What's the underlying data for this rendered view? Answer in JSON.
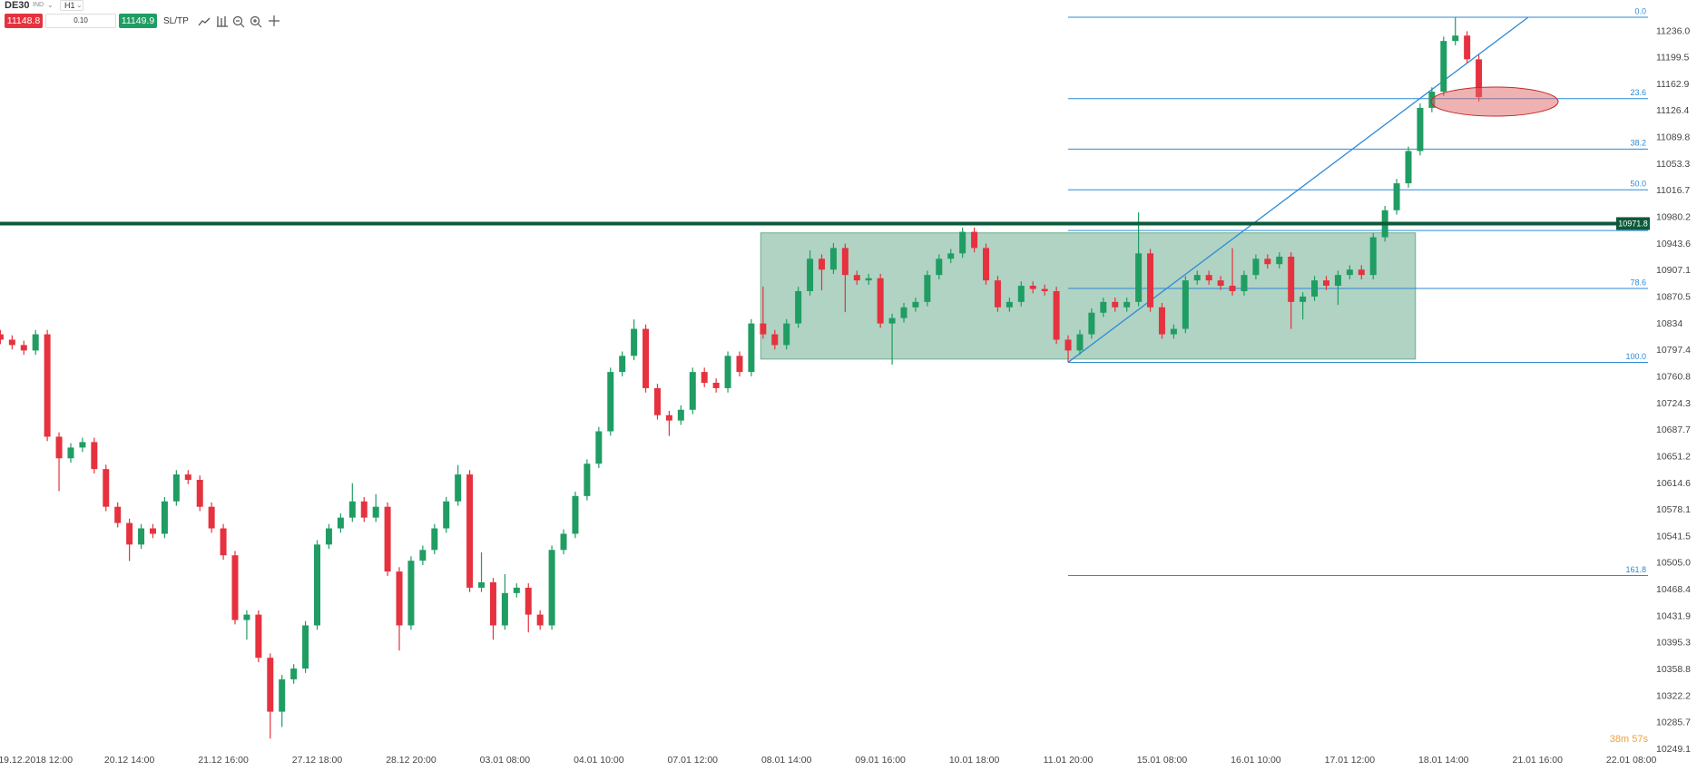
{
  "toolbar": {
    "symbol": "DE30",
    "tag": "IND",
    "timeframe": "H1",
    "sell_price": "11148.8",
    "volume": "0.10",
    "buy_price": "11149.9",
    "sltp": "SL/TP"
  },
  "chart_data": {
    "type": "candlestick",
    "categories": [
      null,
      null,
      null,
      "19.12.2018 12:00",
      null,
      null,
      null,
      null,
      null,
      null,
      null,
      "20.12 14:00",
      null,
      null,
      null,
      null,
      null,
      null,
      null,
      "21.12 16:00",
      null,
      null,
      null,
      null,
      null,
      null,
      null,
      "27.12 18:00",
      null,
      null,
      null,
      null,
      null,
      null,
      null,
      "28.12 20:00",
      null,
      null,
      null,
      null,
      null,
      null,
      null,
      "03.01 08:00",
      null,
      null,
      null,
      null,
      null,
      null,
      null,
      "04.01 10:00",
      null,
      null,
      null,
      null,
      null,
      null,
      null,
      "07.01 12:00",
      null,
      null,
      null,
      null,
      null,
      null,
      null,
      "08.01 14:00",
      null,
      null,
      null,
      null,
      null,
      null,
      null,
      "09.01 16:00",
      null,
      null,
      null,
      null,
      null,
      null,
      null,
      "10.01 18:00",
      null,
      null,
      null,
      null,
      null,
      null,
      null,
      "11.01 20:00",
      null,
      null,
      null,
      null,
      null,
      null,
      null,
      "15.01 08:00",
      null,
      null,
      null,
      null,
      null,
      null,
      null,
      "16.01 10:00",
      null,
      null,
      null,
      null,
      null,
      null,
      null,
      "17.01 12:00",
      null,
      null,
      null,
      null,
      null,
      null,
      null,
      "18.01 14:00",
      null,
      null,
      null,
      null,
      null,
      null,
      null,
      "21.01 16:00",
      null,
      null,
      null,
      null,
      null,
      null,
      null,
      "22.01 08:00"
    ],
    "open": [
      10819.6,
      10812.2,
      10804.8,
      10797.4,
      10819.6,
      10678.9,
      10649.2,
      10664.0,
      10671.5,
      10634.4,
      10582.6,
      10560.3,
      10530.7,
      10552.9,
      10545.5,
      10590.0,
      10627.0,
      10619.6,
      10582.6,
      10552.9,
      10515.9,
      10427.0,
      10434.4,
      10375.1,
      10301.0,
      10345.5,
      10360.3,
      10419.6,
      10530.7,
      10552.9,
      10567.7,
      10590.0,
      10567.7,
      10582.6,
      10493.6,
      10419.6,
      10508.5,
      10523.3,
      10552.9,
      10590.0,
      10627.0,
      10471.4,
      10478.8,
      10419.6,
      10464.0,
      10471.4,
      10434.4,
      10419.6,
      10523.3,
      10545.5,
      10597.4,
      10641.8,
      10686.3,
      10767.8,
      10790.0,
      10827.1,
      10745.6,
      10708.5,
      10701.1,
      10715.9,
      10767.8,
      10753.0,
      10745.6,
      10790.0,
      10767.8,
      10834.5,
      10819.6,
      10804.8,
      10834.5,
      10878.9,
      10923.4,
      10908.5,
      10938.2,
      10901.1,
      10893.7,
      10896.7,
      10834.5,
      10841.9,
      10856.7,
      10864.1,
      10901.1,
      10923.4,
      10930.8,
      10960.4,
      10938.2,
      10893.7,
      10856.7,
      10864.1,
      10886.3,
      10881.9,
      10878.9,
      10812.2,
      10797.4,
      10819.6,
      10849.3,
      10864.1,
      10856.7,
      10864.1,
      10930.8,
      10856.7,
      10819.6,
      10827.1,
      10893.7,
      10901.1,
      10893.7,
      10886.3,
      10878.9,
      10901.1,
      10923.4,
      10916.0,
      10926.3,
      10864.1,
      10871.5,
      10893.7,
      10886.3,
      10901.1,
      10908.5,
      10901.1,
      10953.0,
      10990.1,
      11027.1,
      11071.5,
      11130.8,
      11153.0,
      11222.7,
      11230.1,
      11197.5,
      null,
      null,
      null,
      null,
      null,
      null,
      null,
      null,
      null,
      null,
      null,
      null,
      null
    ],
    "high": [
      10825.6,
      10818.2,
      10810.8,
      10825.6,
      10825.6,
      10684.9,
      10670.0,
      10677.5,
      10677.5,
      10640.4,
      10588.6,
      10566.3,
      10558.9,
      10558.9,
      10596.0,
      10633.0,
      10633.0,
      10625.6,
      10588.6,
      10558.9,
      10521.9,
      10440.4,
      10440.4,
      10381.1,
      10351.5,
      10366.3,
      10425.6,
      10536.7,
      10558.9,
      10573.7,
      10615.0,
      10596.0,
      10600.0,
      10588.6,
      10499.6,
      10514.5,
      10529.3,
      10558.9,
      10596.0,
      10640.0,
      10633.0,
      10520.0,
      10484.8,
      10490.0,
      10477.4,
      10477.4,
      10440.4,
      10529.3,
      10551.5,
      10603.4,
      10647.8,
      10692.3,
      10773.8,
      10796.0,
      10840.0,
      10833.1,
      10751.6,
      10714.5,
      10721.9,
      10773.8,
      10773.8,
      10759.0,
      10796.0,
      10796.0,
      10840.5,
      10885.0,
      10825.6,
      10840.5,
      10884.9,
      10935.0,
      10929.4,
      10945.0,
      10944.2,
      10907.1,
      10902.7,
      10902.7,
      10847.9,
      10862.7,
      10870.1,
      10907.1,
      10929.4,
      10936.8,
      10966.4,
      10966.4,
      10944.2,
      10899.7,
      10870.1,
      10892.3,
      10892.3,
      10887.9,
      10884.9,
      10818.2,
      10825.6,
      10855.3,
      10870.1,
      10870.1,
      10870.1,
      10987.1,
      10936.8,
      10862.7,
      10833.1,
      10899.7,
      10907.1,
      10907.1,
      10899.7,
      10938.0,
      10907.1,
      10929.4,
      10929.4,
      10932.3,
      10932.3,
      10877.5,
      10899.7,
      10899.7,
      10907.1,
      10914.5,
      10914.5,
      10959.0,
      10996.1,
      11033.1,
      11077.5,
      11136.8,
      11159.0,
      11228.7,
      11255.3,
      11236.1,
      11203.5,
      null,
      null,
      null,
      null,
      null,
      null,
      null,
      null,
      null,
      null,
      null,
      null,
      null
    ],
    "low": [
      10806.2,
      10798.8,
      10791.4,
      10791.4,
      10672.9,
      10604.0,
      10643.2,
      10658.0,
      10628.4,
      10576.6,
      10554.3,
      10508.0,
      10524.7,
      10539.5,
      10539.5,
      10584.0,
      10613.6,
      10576.6,
      10546.9,
      10509.9,
      10421.0,
      10400.0,
      10369.1,
      10264.0,
      10280.0,
      10339.5,
      10354.3,
      10413.6,
      10524.7,
      10546.9,
      10561.7,
      10561.7,
      10561.7,
      10487.6,
      10385.0,
      10413.6,
      10502.5,
      10517.3,
      10546.9,
      10584.0,
      10465.4,
      10465.4,
      10400.0,
      10413.6,
      10458.0,
      10410.0,
      10413.6,
      10413.6,
      10517.3,
      10539.5,
      10591.4,
      10635.8,
      10680.3,
      10761.8,
      10784.0,
      10739.6,
      10702.5,
      10680.0,
      10695.1,
      10709.9,
      10747.0,
      10739.6,
      10739.6,
      10761.8,
      10761.8,
      10813.6,
      10798.8,
      10798.8,
      10828.5,
      10872.9,
      10880.0,
      10902.5,
      10850.0,
      10887.7,
      10887.7,
      10828.5,
      10778.0,
      10835.9,
      10850.7,
      10858.1,
      10895.1,
      10917.4,
      10924.8,
      10932.2,
      10887.7,
      10850.7,
      10850.7,
      10858.1,
      10875.9,
      10872.9,
      10806.2,
      10781.1,
      10791.4,
      10813.6,
      10843.3,
      10850.7,
      10850.7,
      10858.1,
      10850.7,
      10813.6,
      10813.6,
      10821.1,
      10887.7,
      10887.7,
      10880.3,
      10872.9,
      10872.9,
      10895.1,
      10910.0,
      10910.0,
      10827.0,
      10840.0,
      10865.5,
      10880.3,
      10860.0,
      10895.1,
      10895.1,
      10895.1,
      10947.0,
      10984.1,
      11021.1,
      11065.5,
      11124.8,
      11147.0,
      11216.7,
      11191.5,
      11139.6,
      null,
      null,
      null,
      null,
      null,
      null,
      null,
      null,
      null,
      null,
      null,
      null,
      null
    ],
    "close": [
      10812.2,
      10804.8,
      10797.4,
      10819.6,
      10678.9,
      10649.2,
      10664.0,
      10671.5,
      10634.4,
      10582.6,
      10560.3,
      10530.7,
      10552.9,
      10545.5,
      10590.0,
      10627.0,
      10619.6,
      10582.6,
      10552.9,
      10515.9,
      10427.0,
      10434.4,
      10375.1,
      10301.0,
      10345.5,
      10360.3,
      10419.6,
      10530.7,
      10552.9,
      10567.7,
      10590.0,
      10567.7,
      10582.6,
      10493.6,
      10419.6,
      10508.5,
      10523.3,
      10552.9,
      10590.0,
      10627.0,
      10471.4,
      10478.8,
      10419.6,
      10464.0,
      10471.4,
      10434.4,
      10419.6,
      10523.3,
      10545.5,
      10597.4,
      10641.8,
      10686.3,
      10767.8,
      10790.0,
      10827.1,
      10745.6,
      10708.5,
      10701.1,
      10715.9,
      10767.8,
      10753.0,
      10745.6,
      10790.0,
      10767.8,
      10834.5,
      10819.6,
      10804.8,
      10834.5,
      10878.9,
      10923.4,
      10908.5,
      10938.2,
      10901.1,
      10893.7,
      10896.7,
      10834.5,
      10841.9,
      10856.7,
      10864.1,
      10901.1,
      10923.4,
      10930.8,
      10960.4,
      10938.2,
      10893.7,
      10856.7,
      10864.1,
      10886.3,
      10881.9,
      10878.9,
      10812.2,
      10797.4,
      10819.6,
      10849.3,
      10864.1,
      10856.7,
      10864.1,
      10930.8,
      10856.7,
      10819.6,
      10827.1,
      10893.7,
      10901.1,
      10893.7,
      10886.3,
      10878.9,
      10901.1,
      10923.4,
      10916.0,
      10926.3,
      10864.1,
      10871.5,
      10893.7,
      10886.3,
      10901.1,
      10908.5,
      10901.1,
      10953.0,
      10990.1,
      11027.1,
      11071.5,
      11130.8,
      11153.0,
      11222.7,
      11230.1,
      11197.5,
      11145.6,
      null,
      null,
      null,
      null,
      null,
      null,
      null,
      null,
      null,
      null,
      null,
      null,
      null
    ],
    "up_color": "#1f9d63",
    "down_color": "#e5323e",
    "ylim": [
      10240.7,
      11279.0
    ],
    "yticks": [
      {
        "value": 11236,
        "label": "11236.0"
      },
      11199.5,
      11162.9,
      11126.4,
      11089.8,
      11053.3,
      11016.7,
      10980.2,
      10943.6,
      10907.1,
      10870.5,
      10834,
      10797.4,
      10760.8,
      10724.3,
      10687.7,
      10651.2,
      10614.6,
      10578.1,
      10541.5,
      {
        "value": 10505,
        "label": "10505.0"
      },
      10468.4,
      10431.9,
      10395.3,
      10358.8,
      10322.2,
      10285.7,
      10249.1
    ],
    "grid": false,
    "hline": {
      "value": 10971.8,
      "color": "#0c5a3a"
    },
    "zone": {
      "high": 10959.0,
      "low": 10785.6,
      "color": "#6fae92"
    },
    "fibonacci": {
      "high": 11255.3,
      "low": 10781.1,
      "color": "#2d8ad6",
      "levels": [
        {
          "value": 0,
          "label": "0.0"
        },
        23.6,
        38.2,
        {
          "value": 50,
          "label": "50.0"
        },
        78.6,
        {
          "value": 100,
          "label": "100.0"
        },
        161.8
      ],
      "unlabeled_levels": [
        61.8
      ]
    },
    "countdown": "38m 57s"
  }
}
